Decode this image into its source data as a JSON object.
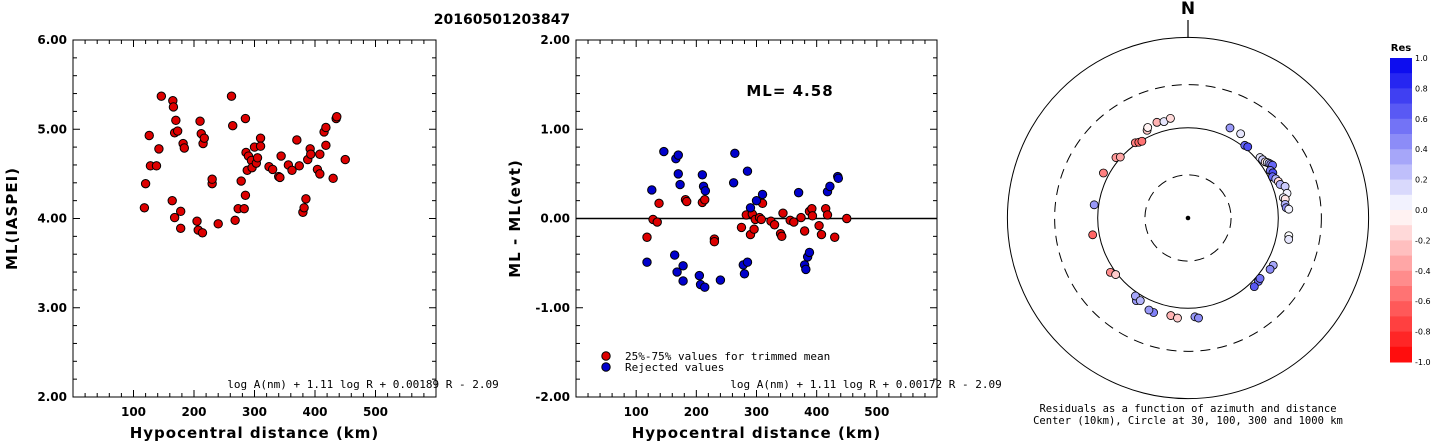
{
  "title": "20160501203847",
  "chart_data": [
    {
      "type": "scatter",
      "ylabel": "ML(IASPEI)",
      "xlabel": "Hypocentral distance (km)",
      "xticks": [
        "100",
        "200",
        "300",
        "400",
        "500"
      ],
      "xlim": [
        0,
        600
      ],
      "yticks": [
        "2.00",
        "3.00",
        "4.00",
        "5.00",
        "6.00"
      ],
      "ylim": [
        2,
        6
      ],
      "formula": "log A(nm) + 1.11 log R + 0.00189 R - 2.09",
      "series": [
        {
          "color": "#dd0000",
          "points": [
            [
              118,
              4.12
            ],
            [
              120,
              4.39
            ],
            [
              126,
              4.93
            ],
            [
              128,
              4.59
            ],
            [
              138,
              4.59
            ],
            [
              142,
              4.78
            ],
            [
              146,
              5.37
            ],
            [
              164,
              4.2
            ],
            [
              165,
              5.32
            ],
            [
              166,
              5.25
            ],
            [
              168,
              4.01
            ],
            [
              168,
              4.96
            ],
            [
              170,
              5.1
            ],
            [
              173,
              4.98
            ],
            [
              178,
              3.89
            ],
            [
              178,
              4.08
            ],
            [
              182,
              4.84
            ],
            [
              184,
              4.79
            ],
            [
              205,
              3.97
            ],
            [
              207,
              3.87
            ],
            [
              210,
              5.09
            ],
            [
              212,
              4.95
            ],
            [
              214,
              3.84
            ],
            [
              215,
              4.84
            ],
            [
              217,
              4.9
            ],
            [
              230,
              4.39
            ],
            [
              230,
              4.44
            ],
            [
              240,
              3.94
            ],
            [
              262,
              5.37
            ],
            [
              264,
              5.04
            ],
            [
              268,
              3.98
            ],
            [
              273,
              4.11
            ],
            [
              278,
              4.42
            ],
            [
              283,
              4.11
            ],
            [
              285,
              5.12
            ],
            [
              285,
              4.26
            ],
            [
              286,
              4.74
            ],
            [
              288,
              4.54
            ],
            [
              290,
              4.7
            ],
            [
              295,
              4.65
            ],
            [
              296,
              4.57
            ],
            [
              300,
              4.8
            ],
            [
              303,
              4.62
            ],
            [
              305,
              4.68
            ],
            [
              310,
              4.9
            ],
            [
              310,
              4.81
            ],
            [
              324,
              4.58
            ],
            [
              330,
              4.55
            ],
            [
              340,
              4.47
            ],
            [
              342,
              4.46
            ],
            [
              344,
              4.7
            ],
            [
              356,
              4.6
            ],
            [
              362,
              4.54
            ],
            [
              370,
              4.88
            ],
            [
              374,
              4.59
            ],
            [
              380,
              4.07
            ],
            [
              382,
              4.12
            ],
            [
              385,
              4.22
            ],
            [
              388,
              4.66
            ],
            [
              392,
              4.78
            ],
            [
              393,
              4.72
            ],
            [
              404,
              4.55
            ],
            [
              408,
              4.5
            ],
            [
              408,
              4.72
            ],
            [
              415,
              4.97
            ],
            [
              418,
              4.82
            ],
            [
              418,
              5.02
            ],
            [
              430,
              4.45
            ],
            [
              435,
              5.12
            ],
            [
              436,
              5.14
            ],
            [
              450,
              4.66
            ]
          ]
        }
      ]
    },
    {
      "type": "scatter",
      "ylabel": "ML - ML(evt)",
      "xlabel": "Hypocentral distance (km)",
      "xticks": [
        "100",
        "200",
        "300",
        "400",
        "500"
      ],
      "xlim": [
        0,
        600
      ],
      "yticks": [
        "-2.00",
        "-1.00",
        "0.00",
        "1.00",
        "2.00"
      ],
      "ylim": [
        -2,
        2
      ],
      "hline": 0,
      "annotation": "ML= 4.58",
      "formula": "log A(nm) + 1.11 log R + 0.00172 R - 2.09",
      "legend": [
        {
          "label": "25%-75% values for trimmed mean",
          "color": "#dd0000"
        },
        {
          "label": "Rejected values",
          "color": "#0000cc"
        }
      ],
      "series": [
        {
          "name": "25%-75% values for trimmed mean",
          "color": "#dd0000",
          "points": [
            [
              118,
              -0.21
            ],
            [
              128,
              -0.01
            ],
            [
              135,
              -0.04
            ],
            [
              138,
              0.17
            ],
            [
              182,
              0.21
            ],
            [
              184,
              0.19
            ],
            [
              210,
              0.18
            ],
            [
              214,
              0.21
            ],
            [
              230,
              -0.23
            ],
            [
              230,
              -0.26
            ],
            [
              275,
              -0.1
            ],
            [
              283,
              0.04
            ],
            [
              290,
              -0.18
            ],
            [
              293,
              0.05
            ],
            [
              296,
              -0.12
            ],
            [
              298,
              -0.01
            ],
            [
              305,
              0.01
            ],
            [
              308,
              -0.01
            ],
            [
              310,
              0.17
            ],
            [
              324,
              -0.03
            ],
            [
              330,
              -0.07
            ],
            [
              340,
              -0.17
            ],
            [
              342,
              -0.2
            ],
            [
              344,
              0.06
            ],
            [
              356,
              -0.02
            ],
            [
              362,
              -0.04
            ],
            [
              374,
              0.01
            ],
            [
              380,
              -0.14
            ],
            [
              388,
              0.08
            ],
            [
              392,
              0.11
            ],
            [
              393,
              0.03
            ],
            [
              404,
              -0.08
            ],
            [
              408,
              -0.18
            ],
            [
              415,
              0.11
            ],
            [
              418,
              0.04
            ],
            [
              430,
              -0.21
            ],
            [
              450,
              0.0
            ]
          ]
        },
        {
          "name": "Rejected values",
          "color": "#0000cc",
          "points": [
            [
              118,
              -0.49
            ],
            [
              126,
              0.32
            ],
            [
              146,
              0.75
            ],
            [
              164,
              -0.41
            ],
            [
              166,
              0.67
            ],
            [
              168,
              -0.6
            ],
            [
              170,
              0.71
            ],
            [
              170,
              0.5
            ],
            [
              173,
              0.38
            ],
            [
              178,
              -0.53
            ],
            [
              178,
              -0.7
            ],
            [
              205,
              -0.64
            ],
            [
              207,
              -0.74
            ],
            [
              210,
              0.49
            ],
            [
              212,
              0.36
            ],
            [
              214,
              -0.77
            ],
            [
              215,
              0.31
            ],
            [
              240,
              -0.69
            ],
            [
              262,
              0.4
            ],
            [
              264,
              0.73
            ],
            [
              278,
              -0.52
            ],
            [
              280,
              -0.62
            ],
            [
              285,
              -0.49
            ],
            [
              285,
              0.53
            ],
            [
              290,
              0.12
            ],
            [
              300,
              0.2
            ],
            [
              310,
              0.27
            ],
            [
              370,
              0.29
            ],
            [
              380,
              -0.52
            ],
            [
              382,
              -0.57
            ],
            [
              385,
              -0.43
            ],
            [
              388,
              -0.38
            ],
            [
              418,
              0.3
            ],
            [
              422,
              0.36
            ],
            [
              435,
              0.47
            ],
            [
              436,
              0.45
            ]
          ]
        }
      ]
    },
    {
      "type": "scatter",
      "subtype": "polar",
      "north_label": "N",
      "caption_line1": "Residuals as a function of azimuth and distance",
      "caption_line2": "Center (10km), Circle at 30, 100, 300 and 1000 km",
      "rings_km": [
        30,
        100,
        300,
        1000
      ],
      "colorbar": {
        "title": "Res",
        "ticks": [
          "1.0",
          "0.8",
          "0.6",
          "0.4",
          "0.2",
          "0.0",
          "-0.2",
          "-0.4",
          "-0.6",
          "-0.8",
          "-1.0"
        ],
        "range": [
          -1,
          1
        ],
        "positive_color": "#0000ee",
        "negative_color": "#ff0000"
      },
      "points": [
        {
          "az": -25,
          "dist_km": 118,
          "res": -0.21
        },
        {
          "az": -24,
          "dist_km": 125,
          "res": -0.05
        },
        {
          "az": -18,
          "dist_km": 130,
          "res": -0.3
        },
        {
          "az": -14,
          "dist_km": 126,
          "res": 0.1
        },
        {
          "az": -10,
          "dist_km": 132,
          "res": -0.15
        },
        {
          "az": -35,
          "dist_km": 104,
          "res": -0.5
        },
        {
          "az": -33,
          "dist_km": 100,
          "res": -0.6
        },
        {
          "az": -31,
          "dist_km": 98,
          "res": -0.55
        },
        {
          "az": -50,
          "dist_km": 110,
          "res": -0.4
        },
        {
          "az": -48,
          "dist_km": 102,
          "res": -0.35
        },
        {
          "az": -62,
          "dist_km": 115,
          "res": -0.5
        },
        {
          "az": -82,
          "dist_km": 112,
          "res": 0.4
        },
        {
          "az": -100,
          "dist_km": 118,
          "res": -0.6
        },
        {
          "az": -125,
          "dist_km": 112,
          "res": -0.45
        },
        {
          "az": -128,
          "dist_km": 104,
          "res": -0.2
        },
        {
          "az": -148,
          "dist_km": 120,
          "res": 0.4
        },
        {
          "az": -146,
          "dist_km": 110,
          "res": 0.35
        },
        {
          "az": -150,
          "dist_km": 114,
          "res": 0.3
        },
        {
          "az": -170,
          "dist_km": 125,
          "res": -0.3
        },
        {
          "az": -174,
          "dist_km": 130,
          "res": -0.2
        },
        {
          "az": -160,
          "dist_km": 130,
          "res": 0.5
        },
        {
          "az": -157,
          "dist_km": 128,
          "res": 0.4
        },
        {
          "az": 176,
          "dist_km": 125,
          "res": 0.4
        },
        {
          "az": 174,
          "dist_km": 130,
          "res": 0.45
        },
        {
          "az": 132,
          "dist_km": 112,
          "res": 0.6
        },
        {
          "az": 130,
          "dist_km": 110,
          "res": 0.55
        },
        {
          "az": 136,
          "dist_km": 114,
          "res": 0.65
        },
        {
          "az": 119,
          "dist_km": 120,
          "res": 0.35
        },
        {
          "az": 122,
          "dist_km": 118,
          "res": 0.45
        },
        {
          "az": 100,
          "dist_km": 136,
          "res": 0.0
        },
        {
          "az": 102,
          "dist_km": 138,
          "res": 0.1
        },
        {
          "az": 25,
          "dist_km": 126,
          "res": 0.4
        },
        {
          "az": 32,
          "dist_km": 126,
          "res": 0.1
        },
        {
          "az": 38,
          "dist_km": 105,
          "res": 0.6
        },
        {
          "az": 40,
          "dist_km": 107,
          "res": 0.7
        },
        {
          "az": 50,
          "dist_km": 110,
          "res": 0.1
        },
        {
          "az": 52,
          "dist_km": 112,
          "res": 0.2
        },
        {
          "az": 54,
          "dist_km": 114,
          "res": -0.1
        },
        {
          "az": 55,
          "dist_km": 118,
          "res": 0.05
        },
        {
          "az": 56,
          "dist_km": 121,
          "res": 0.3
        },
        {
          "az": 57,
          "dist_km": 124,
          "res": 0.4
        },
        {
          "az": 58,
          "dist_km": 127,
          "res": 0.6
        },
        {
          "az": 60,
          "dist_km": 113,
          "res": 0.5
        },
        {
          "az": 62,
          "dist_km": 116,
          "res": 0.7
        },
        {
          "az": 64,
          "dist_km": 110,
          "res": 0.6
        },
        {
          "az": 66,
          "dist_km": 116,
          "res": 0.3
        },
        {
          "az": 68,
          "dist_km": 120,
          "res": -0.15
        },
        {
          "az": 70,
          "dist_km": 122,
          "res": 0.3
        },
        {
          "az": 72,
          "dist_km": 135,
          "res": 0.2
        },
        {
          "az": 76,
          "dist_km": 135,
          "res": 0.05
        },
        {
          "az": 78,
          "dist_km": 120,
          "res": 0.05
        },
        {
          "az": 79,
          "dist_km": 125,
          "res": -0.1
        },
        {
          "az": 82,
          "dist_km": 122,
          "res": 0.3
        },
        {
          "az": 84,
          "dist_km": 124,
          "res": 0.45
        },
        {
          "az": 85,
          "dist_km": 132,
          "res": 0.05
        }
      ]
    }
  ]
}
